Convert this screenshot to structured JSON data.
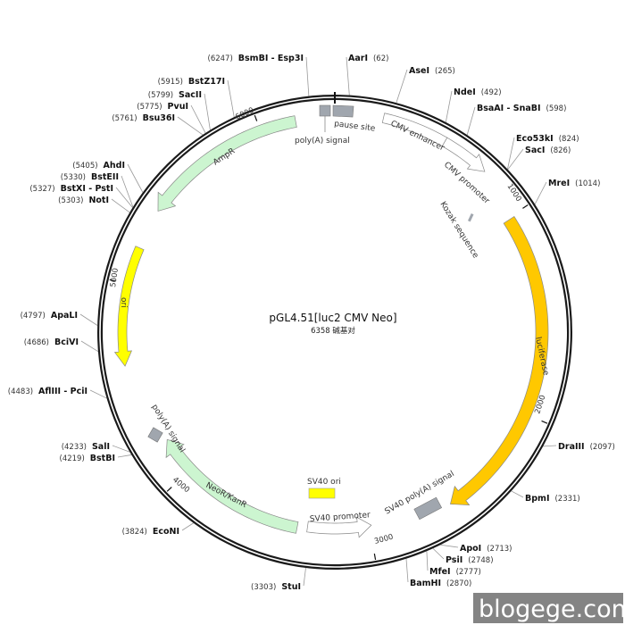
{
  "plasmid": {
    "name": "pGL4.51[luc2 CMV Neo]",
    "length_label": "6358 碱基对",
    "length": 6358
  },
  "ticks": [
    "1000",
    "2000",
    "3000",
    "4000",
    "5000",
    "6000"
  ],
  "features": [
    {
      "label": "luciferase",
      "start": 1010,
      "end": 2580,
      "direction": "forward",
      "color": "#ffc800"
    },
    {
      "label": "AmpR",
      "start": 5376,
      "end": 6172,
      "direction": "reverse",
      "color": "#ccf5d0"
    },
    {
      "label": "ori",
      "start": 4606,
      "end": 5181,
      "direction": "reverse",
      "color": "#ffff00"
    },
    {
      "label": "NeoR/KanR",
      "start": 3372,
      "end": 4192,
      "direction": "forward",
      "color": "#ccf5d0"
    },
    {
      "label": "SV40 promoter",
      "start": 2990,
      "end": 3320,
      "direction": "reverse",
      "color": "#ffffff"
    },
    {
      "label": "CMV enhancer",
      "start": 226,
      "end": 530,
      "direction": "none",
      "color": "#ffffff"
    },
    {
      "label": "CMV promoter",
      "start": 530,
      "end": 760,
      "direction": "forward",
      "color": "#ffffff"
    },
    {
      "label": "SV40 poly(A) signal",
      "color": "#a0a6ae"
    },
    {
      "label": "SV40 ori",
      "color": "#ffff00"
    },
    {
      "label": "poly(A) signal",
      "color": "#a0a6ae"
    },
    {
      "label": "pause site",
      "color": "#a0a6ae"
    },
    {
      "label": "Kozak sequence",
      "color": "#a0a6ae"
    },
    {
      "label": "poly(A) signal",
      "color": "#a0a6ae"
    }
  ],
  "enzymes": [
    {
      "name": "AarI",
      "pos": "(62)",
      "site": 62
    },
    {
      "name": "AseI",
      "pos": "(265)",
      "site": 265
    },
    {
      "name": "NdeI",
      "pos": "(492)",
      "site": 492
    },
    {
      "name": "BsaAI - SnaBI",
      "pos": "(598)",
      "site": 598
    },
    {
      "name": "Eco53kI",
      "pos": "(824)",
      "site": 824
    },
    {
      "name": "SacI",
      "pos": "(826)",
      "site": 826
    },
    {
      "name": "MreI",
      "pos": "(1014)",
      "site": 1014
    },
    {
      "name": "DraIII",
      "pos": "(2097)",
      "site": 2097
    },
    {
      "name": "BpmI",
      "pos": "(2331)",
      "site": 2331
    },
    {
      "name": "ApoI",
      "pos": "(2713)",
      "site": 2713
    },
    {
      "name": "PsiI",
      "pos": "(2748)",
      "site": 2748
    },
    {
      "name": "MfeI",
      "pos": "(2777)",
      "site": 2777
    },
    {
      "name": "BamHI",
      "pos": "(2870)",
      "site": 2870
    },
    {
      "name": "StuI",
      "pos": "(3303)",
      "site": 3303
    },
    {
      "name": "EcoNI",
      "pos": "(3824)",
      "site": 3824
    },
    {
      "name": "BstBI",
      "pos": "(4219)",
      "site": 4219
    },
    {
      "name": "SalI",
      "pos": "(4233)",
      "site": 4233
    },
    {
      "name": "AflIII - PciI",
      "pos": "(4483)",
      "site": 4483
    },
    {
      "name": "BciVI",
      "pos": "(4686)",
      "site": 4686
    },
    {
      "name": "ApaLI",
      "pos": "(4797)",
      "site": 4797
    },
    {
      "name": "NotI",
      "pos": "(5303)",
      "site": 5303
    },
    {
      "name": "BstXI - PstI",
      "pos": "(5327)",
      "site": 5327
    },
    {
      "name": "BstEII",
      "pos": "(5330)",
      "site": 5330
    },
    {
      "name": "AhdI",
      "pos": "(5405)",
      "site": 5405
    },
    {
      "name": "Bsu36I",
      "pos": "(5761)",
      "site": 5761
    },
    {
      "name": "PvuI",
      "pos": "(5775)",
      "site": 5775
    },
    {
      "name": "SacII",
      "pos": "(5799)",
      "site": 5799
    },
    {
      "name": "BstZ17I",
      "pos": "(5915)",
      "site": 5915
    },
    {
      "name": "BsmBI - Esp3I",
      "pos": "(6247)",
      "site": 6247
    }
  ],
  "watermark": "blogege.com"
}
